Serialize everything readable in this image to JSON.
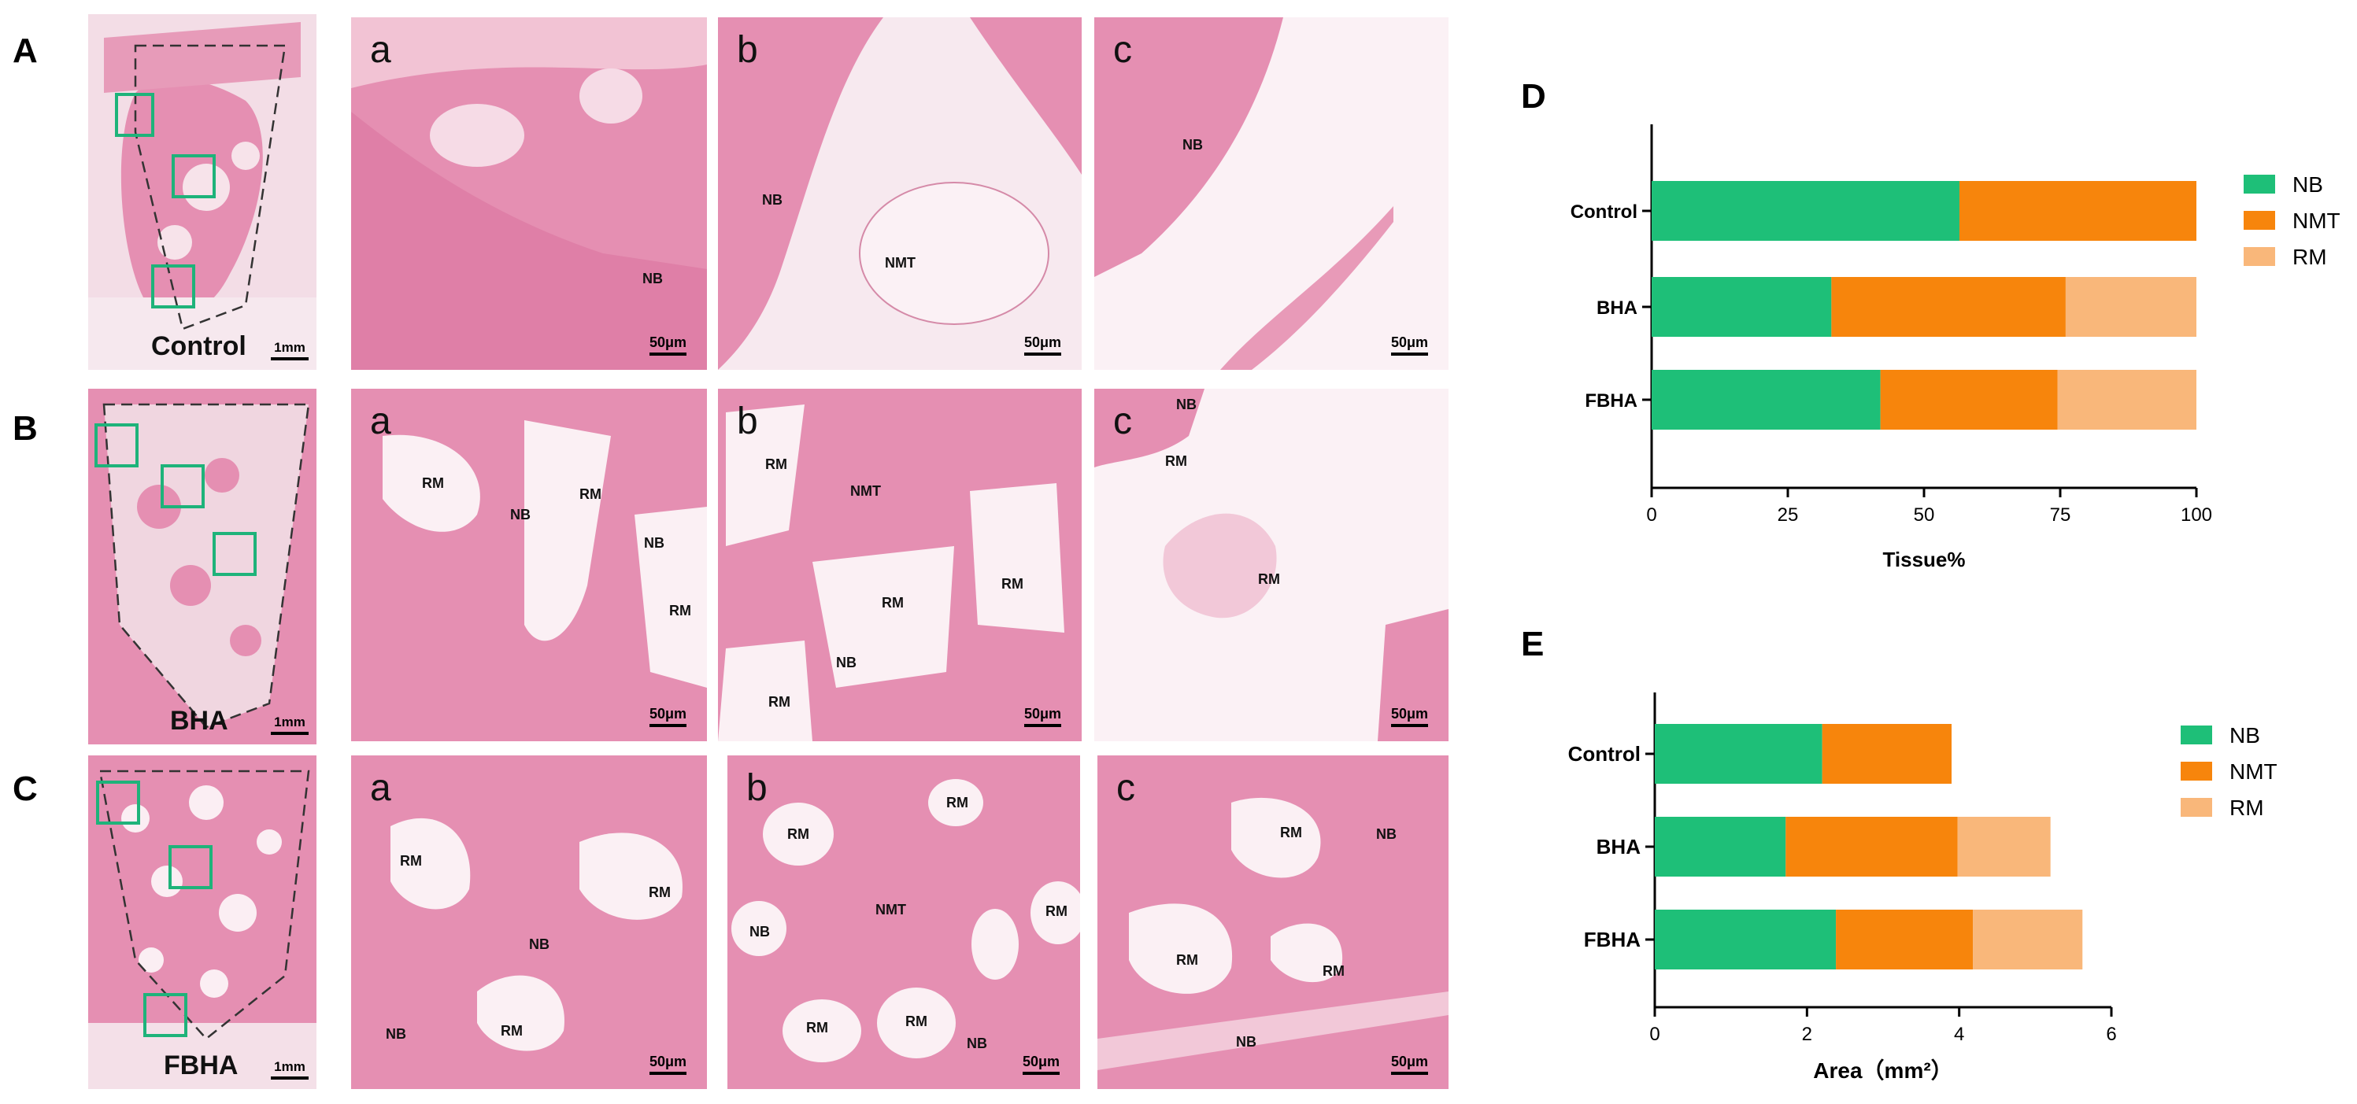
{
  "rows": [
    {
      "letter": "A",
      "overview_caption": "Control",
      "overview_scale": "1mm",
      "panels": [
        {
          "letter": "a",
          "scale": "50μm",
          "tissues": [
            {
              "text": "NB"
            }
          ]
        },
        {
          "letter": "b",
          "scale": "50μm",
          "tissues": [
            {
              "text": "NB"
            },
            {
              "text": "NMT"
            }
          ]
        },
        {
          "letter": "c",
          "scale": "50μm",
          "tissues": [
            {
              "text": "NB"
            }
          ]
        }
      ]
    },
    {
      "letter": "B",
      "overview_caption": "BHA",
      "overview_scale": "1mm",
      "panels": [
        {
          "letter": "a",
          "scale": "50μm",
          "tissues": [
            {
              "text": "RM"
            },
            {
              "text": "NB"
            },
            {
              "text": "RM"
            },
            {
              "text": "NB"
            },
            {
              "text": "RM"
            }
          ]
        },
        {
          "letter": "b",
          "scale": "50μm",
          "tissues": [
            {
              "text": "RM"
            },
            {
              "text": "NMT"
            },
            {
              "text": "RM"
            },
            {
              "text": "RM"
            },
            {
              "text": "NB"
            },
            {
              "text": "RM"
            }
          ]
        },
        {
          "letter": "c",
          "scale": "50μm",
          "tissues": [
            {
              "text": "NB"
            },
            {
              "text": "RM"
            },
            {
              "text": "RM"
            }
          ]
        }
      ]
    },
    {
      "letter": "C",
      "overview_caption": "FBHA",
      "overview_scale": "1mm",
      "panels": [
        {
          "letter": "a",
          "scale": "50μm",
          "tissues": [
            {
              "text": "RM"
            },
            {
              "text": "RM"
            },
            {
              "text": "NB"
            },
            {
              "text": "NB"
            },
            {
              "text": "RM"
            }
          ]
        },
        {
          "letter": "b",
          "scale": "50μm",
          "tissues": [
            {
              "text": "RM"
            },
            {
              "text": "RM"
            },
            {
              "text": "NMT"
            },
            {
              "text": "NB"
            },
            {
              "text": "RM"
            },
            {
              "text": "RM"
            },
            {
              "text": "RM"
            },
            {
              "text": "NB"
            }
          ]
        },
        {
          "letter": "c",
          "scale": "50μm",
          "tissues": [
            {
              "text": "RM"
            },
            {
              "text": "NB"
            },
            {
              "text": "RM"
            },
            {
              "text": "RM"
            },
            {
              "text": "NB"
            }
          ]
        }
      ]
    }
  ],
  "colors": {
    "NB": "#1ebf78",
    "NMT": "#f7850c",
    "RM": "#f9b77a",
    "roi_box": "#1eb37a",
    "tissue_pink": "#e58fb2"
  },
  "chart_data": [
    {
      "panel": "D",
      "type": "bar",
      "orientation": "horizontal",
      "stacked": true,
      "categories": [
        "Control",
        "BHA",
        "FBHA"
      ],
      "series": [
        {
          "name": "NB",
          "values": [
            56.5,
            33,
            42
          ]
        },
        {
          "name": "NMT",
          "values": [
            43.5,
            43,
            32.5
          ]
        },
        {
          "name": "RM",
          "values": [
            0,
            24,
            25.5
          ]
        }
      ],
      "xlabel": "Tissue%",
      "xlim": [
        0,
        100
      ],
      "xticks": [
        "0",
        "25",
        "50",
        "75",
        "100"
      ],
      "legend": "top-right"
    },
    {
      "panel": "E",
      "type": "bar",
      "orientation": "horizontal",
      "stacked": true,
      "categories": [
        "Control",
        "BHA",
        "FBHA"
      ],
      "series": [
        {
          "name": "NB",
          "values": [
            2.2,
            1.72,
            2.38
          ]
        },
        {
          "name": "NMT",
          "values": [
            1.7,
            2.26,
            1.8
          ]
        },
        {
          "name": "RM",
          "values": [
            0,
            1.22,
            1.44
          ]
        }
      ],
      "xlabel": "Area（mm²）",
      "xlim": [
        0,
        6
      ],
      "xticks": [
        "0",
        "2",
        "4",
        "6"
      ],
      "legend": "top-right"
    }
  ]
}
